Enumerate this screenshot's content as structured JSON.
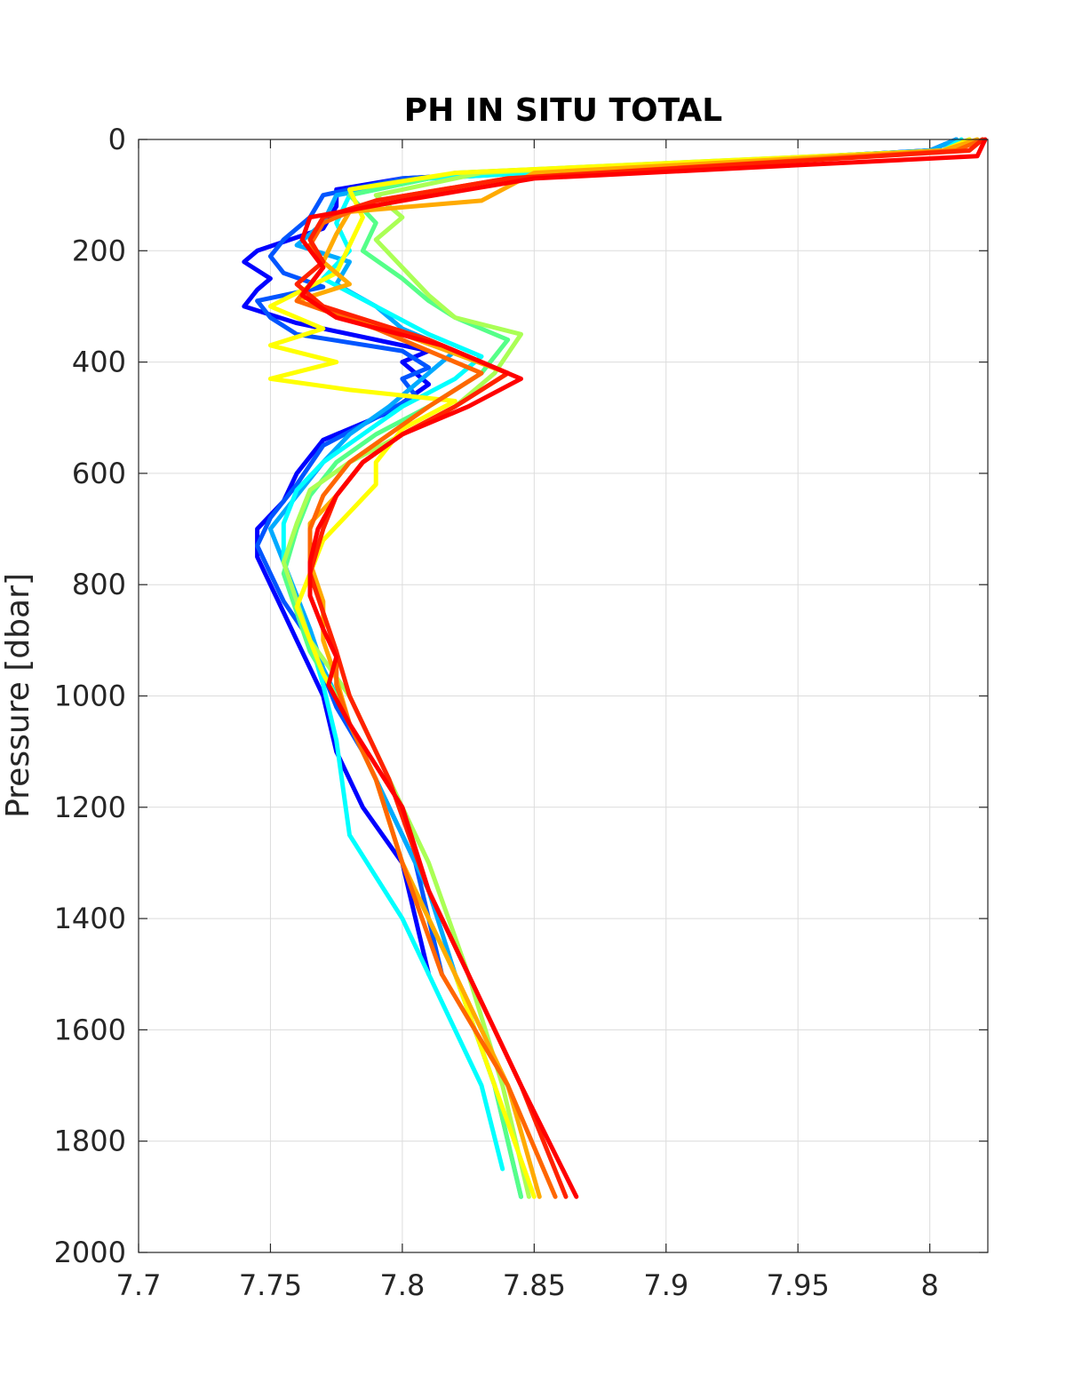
{
  "chart_data": {
    "type": "line",
    "title": "PH IN SITU TOTAL",
    "xlabel": "",
    "ylabel": "Pressure [dbar]",
    "xlim": [
      7.7,
      8.022
    ],
    "ylim": [
      0,
      2000
    ],
    "y_reversed": true,
    "grid": true,
    "legend": "none",
    "x_ticks": [
      7.7,
      7.75,
      7.8,
      7.85,
      7.9,
      7.95,
      8
    ],
    "x_tick_labels": [
      "7.7",
      "7.75",
      "7.8",
      "7.85",
      "7.9",
      "7.95",
      "8"
    ],
    "y_ticks": [
      0,
      200,
      400,
      600,
      800,
      1000,
      1200,
      1400,
      1600,
      1800,
      2000
    ],
    "y_tick_labels": [
      "0",
      "200",
      "400",
      "600",
      "800",
      "1000",
      "1200",
      "1400",
      "1600",
      "1800",
      "2000"
    ],
    "series": [
      {
        "color": "#0000ff",
        "x": [
          8.01,
          8.0,
          7.8,
          7.775,
          7.775,
          7.77,
          7.745,
          7.74,
          7.75,
          7.745,
          7.74,
          7.76,
          7.79,
          7.81,
          7.8,
          7.81,
          7.795,
          7.77,
          7.76,
          7.755,
          7.745,
          7.745,
          7.75,
          7.755,
          7.76,
          7.765,
          7.77,
          7.775,
          7.785,
          7.8,
          7.81
        ],
        "y": [
          0,
          20,
          70,
          90,
          120,
          160,
          200,
          220,
          250,
          270,
          300,
          330,
          360,
          380,
          400,
          440,
          490,
          540,
          600,
          650,
          700,
          750,
          800,
          850,
          900,
          950,
          1000,
          1100,
          1200,
          1300,
          1500
        ]
      },
      {
        "color": "#0055ff",
        "x": [
          8.01,
          8.0,
          7.8,
          7.77,
          7.765,
          7.755,
          7.75,
          7.755,
          7.77,
          7.745,
          7.75,
          7.76,
          7.8,
          7.81,
          7.8,
          7.805,
          7.79,
          7.77,
          7.76,
          7.75,
          7.745,
          7.75,
          7.755,
          7.765,
          7.77,
          7.775,
          7.785,
          7.795,
          7.805,
          7.815
        ],
        "y": [
          0,
          20,
          70,
          100,
          140,
          180,
          210,
          240,
          265,
          290,
          320,
          350,
          380,
          410,
          430,
          460,
          500,
          550,
          620,
          680,
          730,
          780,
          830,
          900,
          960,
          1020,
          1100,
          1200,
          1300,
          1500
        ]
      },
      {
        "color": "#00aaff",
        "x": [
          8.01,
          8.0,
          7.81,
          7.775,
          7.77,
          7.76,
          7.78,
          7.775,
          7.79,
          7.8,
          7.82,
          7.81,
          7.795,
          7.78,
          7.77,
          7.76,
          7.75,
          7.755,
          7.76,
          7.765,
          7.77,
          7.78,
          7.79,
          7.8,
          7.81,
          7.82,
          7.835,
          7.845
        ],
        "y": [
          0,
          20,
          70,
          100,
          150,
          190,
          220,
          260,
          300,
          340,
          380,
          420,
          480,
          530,
          580,
          640,
          700,
          760,
          820,
          880,
          950,
          1050,
          1150,
          1250,
          1350,
          1500,
          1700,
          1900
        ]
      },
      {
        "color": "#00ffff",
        "x": [
          8.012,
          8.005,
          7.81,
          7.78,
          7.775,
          7.78,
          7.77,
          7.79,
          7.81,
          7.83,
          7.82,
          7.8,
          7.785,
          7.77,
          7.76,
          7.755,
          7.755,
          7.76,
          7.765,
          7.77,
          7.775,
          7.78,
          7.8,
          7.815,
          7.83,
          7.838
        ],
        "y": [
          0,
          20,
          70,
          100,
          150,
          200,
          250,
          300,
          350,
          390,
          430,
          480,
          530,
          580,
          630,
          690,
          760,
          830,
          900,
          980,
          1080,
          1250,
          1400,
          1550,
          1700,
          1850
        ]
      },
      {
        "color": "#55ff88",
        "x": [
          8.015,
          8.005,
          7.82,
          7.78,
          7.79,
          7.785,
          7.8,
          7.81,
          7.82,
          7.84,
          7.83,
          7.81,
          7.79,
          7.775,
          7.765,
          7.76,
          7.755,
          7.76,
          7.765,
          7.775,
          7.79,
          7.8,
          7.82,
          7.835,
          7.845
        ],
        "y": [
          0,
          20,
          60,
          100,
          150,
          200,
          250,
          290,
          320,
          360,
          420,
          480,
          530,
          580,
          640,
          700,
          780,
          850,
          920,
          1000,
          1150,
          1300,
          1500,
          1700,
          1900
        ]
      },
      {
        "color": "#aaff55",
        "x": [
          8.015,
          8.005,
          7.83,
          7.79,
          7.8,
          7.79,
          7.8,
          7.81,
          7.82,
          7.845,
          7.835,
          7.82,
          7.8,
          7.78,
          7.765,
          7.76,
          7.755,
          7.76,
          7.765,
          7.78,
          7.795,
          7.81,
          7.825,
          7.838,
          7.848
        ],
        "y": [
          0,
          20,
          60,
          100,
          140,
          180,
          230,
          280,
          320,
          350,
          420,
          480,
          530,
          580,
          630,
          690,
          760,
          830,
          900,
          1000,
          1150,
          1300,
          1500,
          1700,
          1900
        ]
      },
      {
        "color": "#ffff00",
        "x": [
          8.015,
          8.005,
          7.82,
          7.78,
          7.785,
          7.78,
          7.775,
          7.75,
          7.77,
          7.75,
          7.775,
          7.75,
          7.78,
          7.82,
          7.8,
          7.79,
          7.79,
          7.78,
          7.77,
          7.765,
          7.76,
          7.765,
          7.77,
          7.78,
          7.79,
          7.8,
          7.82,
          7.835,
          7.85
        ],
        "y": [
          0,
          20,
          60,
          90,
          140,
          190,
          240,
          300,
          340,
          370,
          400,
          430,
          450,
          470,
          520,
          580,
          620,
          670,
          720,
          780,
          840,
          900,
          960,
          1050,
          1150,
          1300,
          1500,
          1700,
          1900
        ]
      },
      {
        "color": "#ffaa00",
        "x": [
          8.018,
          8.005,
          7.85,
          7.83,
          7.78,
          7.775,
          7.77,
          7.78,
          7.76,
          7.8,
          7.84,
          7.82,
          7.8,
          7.785,
          7.775,
          7.765,
          7.765,
          7.77,
          7.77,
          7.775,
          7.78,
          7.79,
          7.8,
          7.82,
          7.84,
          7.852
        ],
        "y": [
          0,
          20,
          60,
          110,
          130,
          170,
          220,
          260,
          290,
          350,
          420,
          480,
          530,
          580,
          640,
          690,
          760,
          830,
          900,
          970,
          1050,
          1150,
          1300,
          1500,
          1700,
          1900
        ]
      },
      {
        "color": "#ff6600",
        "x": [
          8.02,
          8.01,
          7.84,
          7.79,
          7.77,
          7.765,
          7.77,
          7.765,
          7.76,
          7.79,
          7.83,
          7.81,
          7.795,
          7.78,
          7.77,
          7.765,
          7.765,
          7.77,
          7.775,
          7.775,
          7.78,
          7.79,
          7.8,
          7.815,
          7.84,
          7.858
        ],
        "y": [
          0,
          20,
          70,
          110,
          150,
          190,
          230,
          260,
          290,
          340,
          420,
          480,
          530,
          580,
          640,
          700,
          780,
          850,
          920,
          980,
          1050,
          1150,
          1300,
          1500,
          1700,
          1900
        ]
      },
      {
        "color": "#ff2200",
        "x": [
          8.02,
          8.015,
          7.84,
          7.79,
          7.77,
          7.765,
          7.77,
          7.76,
          7.77,
          7.81,
          7.84,
          7.82,
          7.8,
          7.785,
          7.775,
          7.77,
          7.765,
          7.77,
          7.775,
          7.78,
          7.795,
          7.81,
          7.83,
          7.845,
          7.862
        ],
        "y": [
          0,
          20,
          70,
          110,
          140,
          180,
          220,
          260,
          300,
          360,
          420,
          480,
          530,
          580,
          640,
          700,
          780,
          850,
          920,
          1000,
          1150,
          1350,
          1550,
          1700,
          1900
        ]
      },
      {
        "color": "#ff0000",
        "x": [
          8.021,
          8.018,
          7.85,
          7.8,
          7.765,
          7.762,
          7.77,
          7.762,
          7.775,
          7.815,
          7.845,
          7.825,
          7.8,
          7.785,
          7.775,
          7.768,
          7.765,
          7.765,
          7.77,
          7.775,
          7.772,
          7.78,
          7.8,
          7.81,
          7.825,
          7.845,
          7.866
        ],
        "y": [
          0,
          30,
          70,
          110,
          140,
          180,
          230,
          280,
          320,
          370,
          430,
          480,
          530,
          580,
          640,
          700,
          760,
          820,
          880,
          930,
          980,
          1050,
          1200,
          1350,
          1500,
          1700,
          1900
        ]
      }
    ]
  }
}
